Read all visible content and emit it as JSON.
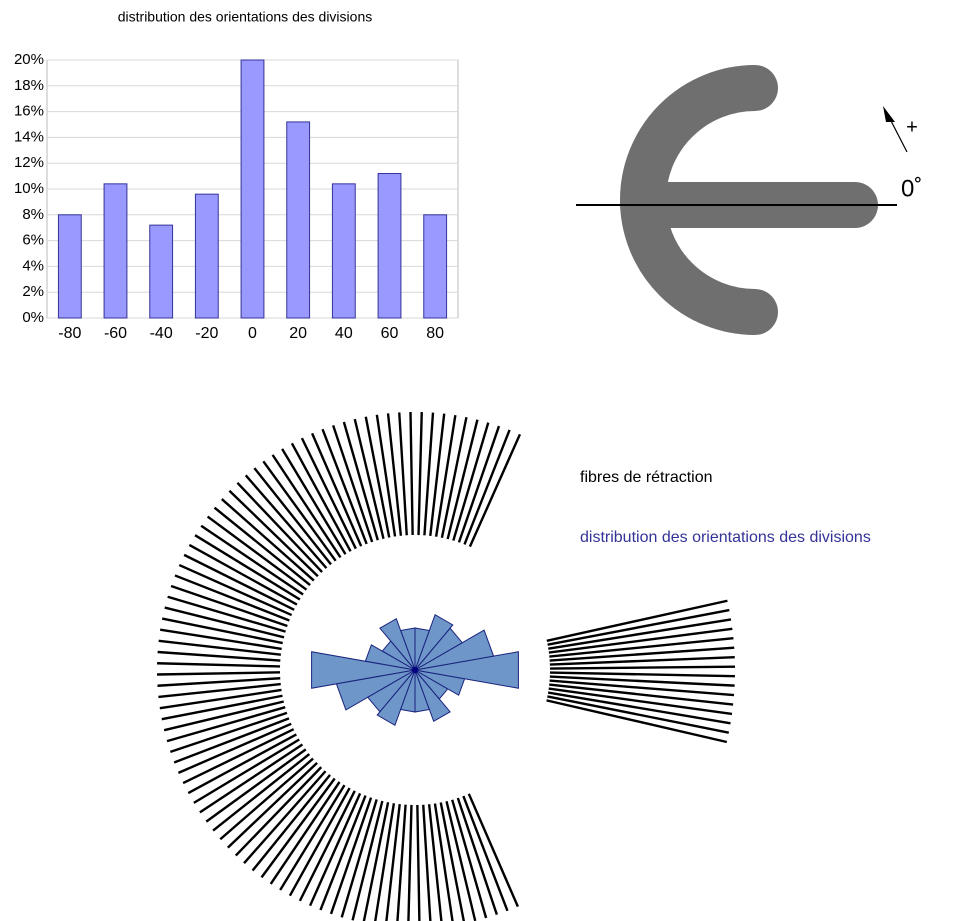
{
  "chart_data": {
    "type": "bar",
    "title": "distribution des orientations des divisions",
    "categories": [
      "-80",
      "-60",
      "-40",
      "-20",
      "0",
      "20",
      "40",
      "60",
      "80"
    ],
    "values": [
      8,
      10.4,
      7.2,
      9.6,
      20,
      15.2,
      10.4,
      11.2,
      8
    ],
    "color": "#9999ff",
    "ylim": [
      0,
      20
    ],
    "yticks": [
      {
        "value": 0,
        "label": "0%"
      },
      {
        "value": 2,
        "label": "2%"
      },
      {
        "value": 4,
        "label": "4%"
      },
      {
        "value": 6,
        "label": "6%"
      },
      {
        "value": 8,
        "label": "8%"
      },
      {
        "value": 10,
        "label": "10%"
      },
      {
        "value": 12,
        "label": "12%"
      },
      {
        "value": 14,
        "label": "14%"
      },
      {
        "value": 16,
        "label": "16%"
      },
      {
        "value": 18,
        "label": "18%"
      },
      {
        "value": 20,
        "label": "20%"
      }
    ],
    "grid": true
  },
  "diagram": {
    "angle_label": "0˚",
    "direction_label": "+"
  },
  "rose": {
    "legend": [
      "fibres de rétraction",
      "distribution des orientations des divisions"
    ]
  }
}
